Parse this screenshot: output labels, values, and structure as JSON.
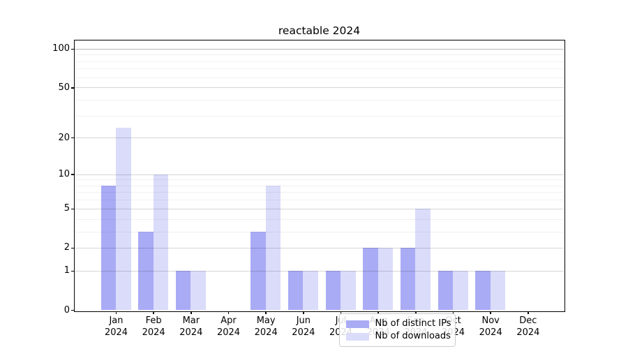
{
  "chart_data": {
    "type": "bar",
    "title": "reactable 2024",
    "categories": [
      "Jan",
      "Feb",
      "Mar",
      "Apr",
      "May",
      "Jun",
      "Jul",
      "Aug",
      "Sep",
      "Oct",
      "Nov",
      "Dec"
    ],
    "category_year": "2024",
    "series": [
      {
        "name": "Nb of distinct IPs",
        "color": "#a9abf5",
        "values": [
          8,
          3,
          1,
          0,
          3,
          1,
          1,
          2,
          2,
          1,
          1,
          0
        ]
      },
      {
        "name": "Nb of downloads",
        "color": "#dadcfa",
        "values": [
          24,
          10,
          1,
          0,
          8,
          1,
          1,
          2,
          5,
          1,
          1,
          0
        ]
      }
    ],
    "xlabel": "",
    "ylabel": "",
    "yscale": "log1p",
    "ylim": [
      0,
      116
    ],
    "yticks": [
      100,
      50,
      20,
      10,
      5,
      2,
      1,
      0
    ],
    "minor_gridlines": [
      3,
      4,
      6,
      7,
      8,
      9,
      30,
      40,
      60,
      70,
      80,
      90
    ],
    "grid": true,
    "legend_position": "lower center"
  }
}
